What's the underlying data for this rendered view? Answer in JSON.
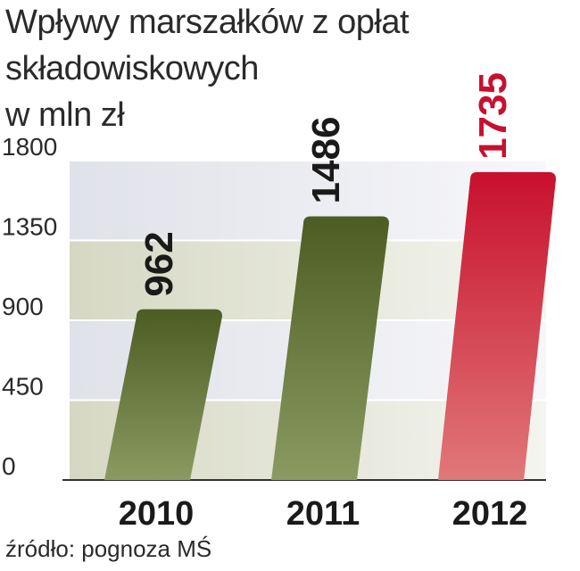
{
  "chart_data": {
    "type": "bar",
    "title_lines": [
      "Wpływy marszałków z opłat",
      "składowiskowych",
      "w mln zł"
    ],
    "categories": [
      "2010",
      "2011",
      "2012"
    ],
    "values": [
      962,
      1486,
      1735
    ],
    "value_labels": [
      "962",
      "1486",
      "1735"
    ],
    "y_ticks": [
      "0",
      "450",
      "900",
      "1350",
      "1800"
    ],
    "ylim": [
      0,
      1800
    ],
    "grid": true,
    "source": "źródło: pognoza MŚ",
    "colors": {
      "bar_dark_green_top": "#4d5c22",
      "bar_green_bottom": "#8a9b62",
      "bar_red_top": "#c8102e",
      "bar_red_bottom": "#e07878",
      "highlight_label": "#c8102e",
      "label": "#1a1a1a"
    }
  }
}
